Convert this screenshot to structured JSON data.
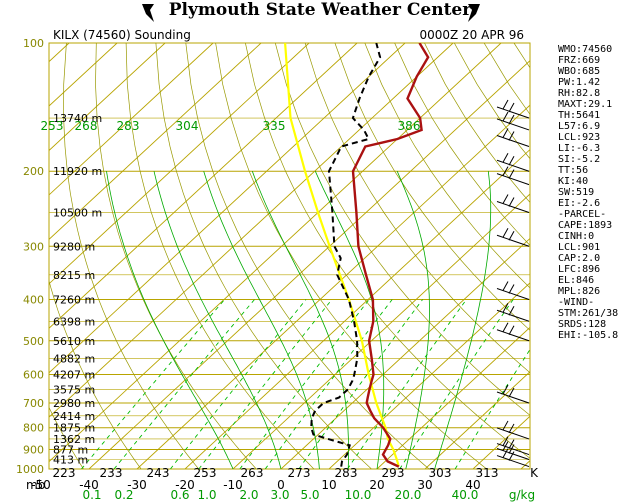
{
  "header": {
    "title": "Plymouth State Weather Center"
  },
  "chart_data": {
    "type": "line",
    "station": "KILX (74560) Sounding",
    "time": "0000Z 20 APR 96",
    "pressure_axis": {
      "labels": [
        "100",
        "200",
        "300",
        "400",
        "500",
        "600",
        "700",
        "800",
        "900",
        "1000"
      ],
      "values": [
        100,
        200,
        300,
        400,
        500,
        600,
        700,
        800,
        900,
        1000
      ],
      "unit_label": "mb"
    },
    "temp_axis": {
      "labels": [
        "-50",
        "-40",
        "-30",
        "-20",
        "-10",
        "0",
        "10",
        "20",
        "30",
        "40"
      ],
      "values": [
        -50,
        -40,
        -30,
        -20,
        -10,
        0,
        10,
        20,
        30,
        40
      ]
    },
    "kelvin_labels": [
      "223",
      "233",
      "243",
      "253",
      "263",
      "273",
      "283",
      "293",
      "303",
      "313",
      "K"
    ],
    "theta_labels": [
      "253",
      "268",
      "283",
      "304",
      "335",
      "386"
    ],
    "mixing_ratio_labels": [
      "0.1",
      "0.2",
      "0.6",
      "1.0",
      "2.0",
      "3.0",
      "5.0",
      "10.0",
      "20.0",
      "40.0",
      "g/kg"
    ],
    "heights": [
      {
        "p": 150,
        "label": "13740 m"
      },
      {
        "p": 200,
        "label": "11920 m"
      },
      {
        "p": 250,
        "label": "10500 m"
      },
      {
        "p": 300,
        "label": "9280 m"
      },
      {
        "p": 350,
        "label": "8215 m"
      },
      {
        "p": 400,
        "label": "7260 m"
      },
      {
        "p": 450,
        "label": "6398 m"
      },
      {
        "p": 500,
        "label": "5610 m"
      },
      {
        "p": 550,
        "label": "4882 m"
      },
      {
        "p": 600,
        "label": "4207 m"
      },
      {
        "p": 650,
        "label": "3575 m"
      },
      {
        "p": 700,
        "label": "2980 m"
      },
      {
        "p": 750,
        "label": "2414 m"
      },
      {
        "p": 800,
        "label": "1875 m"
      },
      {
        "p": 850,
        "label": "1362 m"
      },
      {
        "p": 900,
        "label": "877 m"
      },
      {
        "p": 950,
        "label": "413 m"
      }
    ],
    "temperature": [
      {
        "p": 987,
        "t": 24
      },
      {
        "p": 960,
        "t": 20.5
      },
      {
        "p": 925,
        "t": 18
      },
      {
        "p": 880,
        "t": 17
      },
      {
        "p": 850,
        "t": 16
      },
      {
        "p": 800,
        "t": 12
      },
      {
        "p": 760,
        "t": 8
      },
      {
        "p": 730,
        "t": 5.5
      },
      {
        "p": 700,
        "t": 3
      },
      {
        "p": 680,
        "t": 2
      },
      {
        "p": 650,
        "t": 0.5
      },
      {
        "p": 620,
        "t": -1
      },
      {
        "p": 600,
        "t": -2
      },
      {
        "p": 550,
        "t": -6
      },
      {
        "p": 500,
        "t": -10.5
      },
      {
        "p": 450,
        "t": -14
      },
      {
        "p": 400,
        "t": -19
      },
      {
        "p": 350,
        "t": -26
      },
      {
        "p": 300,
        "t": -34
      },
      {
        "p": 250,
        "t": -42
      },
      {
        "p": 200,
        "t": -52
      },
      {
        "p": 175,
        "t": -55
      },
      {
        "p": 168,
        "t": -50
      },
      {
        "p": 160,
        "t": -47
      },
      {
        "p": 150,
        "t": -50
      },
      {
        "p": 135,
        "t": -57
      },
      {
        "p": 120,
        "t": -60
      },
      {
        "p": 108,
        "t": -62
      },
      {
        "p": 100,
        "t": -67
      }
    ],
    "dewpoint": [
      {
        "p": 987,
        "t": 12
      },
      {
        "p": 960,
        "t": 11
      },
      {
        "p": 925,
        "t": 10.5
      },
      {
        "p": 880,
        "t": 9
      },
      {
        "p": 850,
        "t": 3
      },
      {
        "p": 830,
        "t": -1
      },
      {
        "p": 800,
        "t": -3
      },
      {
        "p": 760,
        "t": -5
      },
      {
        "p": 730,
        "t": -6
      },
      {
        "p": 700,
        "t": -6
      },
      {
        "p": 680,
        "t": -4
      },
      {
        "p": 650,
        "t": -4
      },
      {
        "p": 620,
        "t": -5
      },
      {
        "p": 600,
        "t": -6
      },
      {
        "p": 550,
        "t": -9
      },
      {
        "p": 500,
        "t": -13
      },
      {
        "p": 450,
        "t": -18
      },
      {
        "p": 400,
        "t": -24
      },
      {
        "p": 350,
        "t": -32
      },
      {
        "p": 320,
        "t": -35
      },
      {
        "p": 300,
        "t": -39
      },
      {
        "p": 250,
        "t": -47
      },
      {
        "p": 200,
        "t": -57
      },
      {
        "p": 175,
        "t": -60
      },
      {
        "p": 168,
        "t": -56
      },
      {
        "p": 160,
        "t": -59
      },
      {
        "p": 150,
        "t": -64
      },
      {
        "p": 135,
        "t": -67
      },
      {
        "p": 120,
        "t": -70
      },
      {
        "p": 108,
        "t": -72
      },
      {
        "p": 100,
        "t": -76
      }
    ],
    "parcel": [
      {
        "p": 987,
        "t": 24
      },
      {
        "p": 950,
        "t": 22
      },
      {
        "p": 900,
        "t": 19
      },
      {
        "p": 850,
        "t": 15.5
      },
      {
        "p": 800,
        "t": 12.5
      },
      {
        "p": 700,
        "t": 5
      },
      {
        "p": 600,
        "t": -3
      },
      {
        "p": 500,
        "t": -12
      },
      {
        "p": 400,
        "t": -24
      },
      {
        "p": 300,
        "t": -40
      },
      {
        "p": 250,
        "t": -50
      },
      {
        "p": 200,
        "t": -62
      },
      {
        "p": 150,
        "t": -77
      },
      {
        "p": 100,
        "t": -95
      }
    ],
    "wind_pressures": [
      150,
      160,
      175,
      200,
      215,
      250,
      300,
      400,
      450,
      500,
      700,
      850,
      925,
      950,
      987
    ],
    "stats": [
      "WMO:74560",
      "FRZ:669",
      "WBO:685",
      "PW:1.42",
      "RH:82.8",
      "MAXT:29.1",
      "TH:5641",
      "L57:6.9",
      "LCL:923",
      "LI:-6.3",
      "SI:-5.2",
      "TT:56",
      "KI:40",
      "SW:519",
      "EI:-2.6",
      "-PARCEL-",
      "CAPE:1893",
      "CINH:0",
      "LCL:901",
      "CAP:2.0",
      "LFC:896",
      "EL:846",
      "MPL:826",
      "-WIND-",
      "STM:261/38",
      "SRDS:128",
      "EHI:-105.8"
    ],
    "colors": {
      "temperature": "#aa1111",
      "dewpoint": "#000000",
      "parcel": "#ffff00",
      "isobar": "#b8a400",
      "isotherm": "#b8a400",
      "dry_adiabat": "#999900",
      "moist_adiabat": "#00aa00",
      "mixing_ratio": "#00bb00"
    }
  }
}
